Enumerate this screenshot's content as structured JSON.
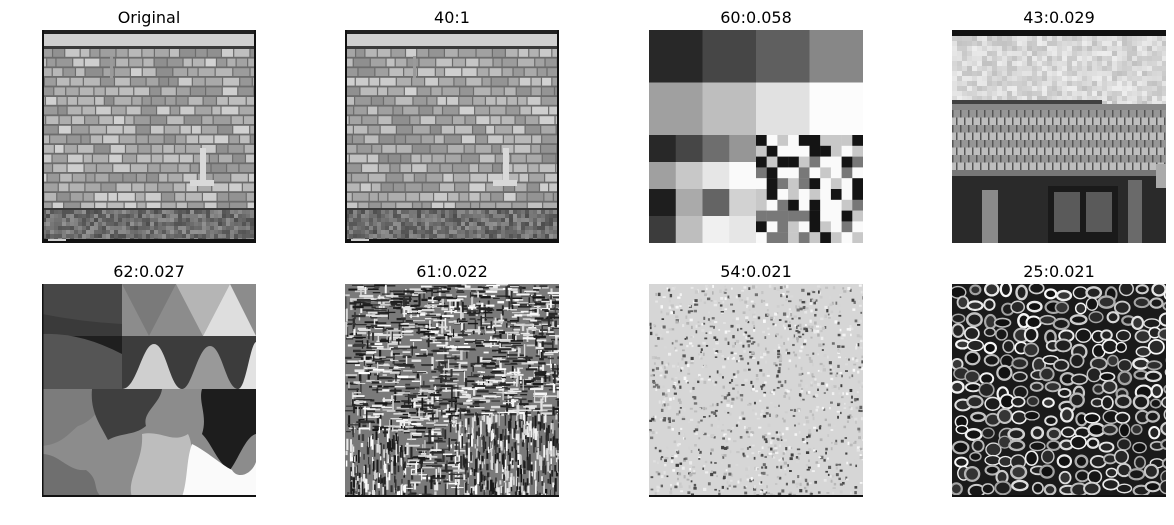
{
  "figure": {
    "panels": [
      {
        "title": "Original",
        "texture": "roof-shingles"
      },
      {
        "title": "40:1",
        "texture": "roof-shingles"
      },
      {
        "title": "60:0.058",
        "texture": "checker-blocks"
      },
      {
        "title": "43:0.029",
        "texture": "tiled-roof-building"
      },
      {
        "title": "62:0.027",
        "texture": "segmented-shapes"
      },
      {
        "title": "61:0.022",
        "texture": "mixed-stroke-noise"
      },
      {
        "title": "54:0.021",
        "texture": "fine-grain-noise"
      },
      {
        "title": "25:0.021",
        "texture": "cellular-foam"
      }
    ]
  }
}
